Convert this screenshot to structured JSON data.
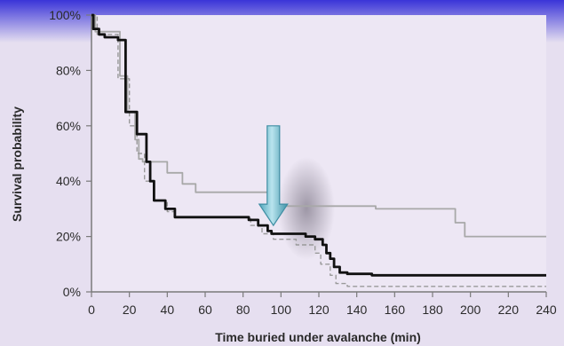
{
  "chart_data": {
    "type": "line",
    "title": "",
    "xlabel": "Time buried under avalanche (min)",
    "ylabel": "Survival probability",
    "xlim": [
      0,
      240
    ],
    "ylim": [
      0,
      100
    ],
    "x_ticks": [
      "0",
      "20",
      "40",
      "60",
      "80",
      "100",
      "120",
      "140",
      "160",
      "180",
      "200",
      "220",
      "240"
    ],
    "y_ticks": [
      "0%",
      "20%",
      "40%",
      "60%",
      "80%",
      "100%"
    ],
    "grid": false,
    "legend": "none",
    "colors": {
      "background": "#e6dff0",
      "plot_area": "#ede7f4",
      "axis": "#7a7a7a",
      "series_thick": "#111111",
      "series_light": "#a8a8a8",
      "series_dashed": "#9a9a9a",
      "arrow": "#7fc4d6",
      "arrow_stroke": "#3f8ea3",
      "top_bar": "#3a34d8"
    },
    "annotation": {
      "type": "down-arrow",
      "x": 96,
      "y_top": 60,
      "y_tip": 24
    },
    "series": [
      {
        "style": "thick-solid",
        "x": [
          0,
          1,
          1,
          4,
          4,
          7,
          7,
          14,
          14,
          18,
          18,
          21,
          21,
          24,
          24,
          26,
          26,
          29,
          29,
          31,
          31,
          33,
          33,
          39,
          39,
          44,
          44,
          83,
          83,
          88,
          88,
          93,
          93,
          95,
          95,
          113,
          113,
          118,
          118,
          122,
          122,
          124,
          124,
          126,
          126,
          128,
          128,
          131,
          131,
          135,
          135,
          148,
          148,
          240
        ],
        "y": [
          100,
          100,
          95,
          95,
          93,
          93,
          92,
          92,
          91,
          91,
          65,
          65,
          65,
          65,
          57,
          57,
          57,
          57,
          47,
          47,
          40,
          40,
          33,
          33,
          30,
          30,
          27,
          27,
          26,
          26,
          24,
          24,
          22,
          22,
          21,
          21,
          20,
          20,
          19,
          19,
          17,
          17,
          14,
          14,
          12,
          12,
          9,
          9,
          7,
          7,
          6.5,
          6.5,
          6,
          6
        ]
      },
      {
        "style": "light-solid",
        "x": [
          0,
          2,
          2,
          15,
          15,
          19,
          19,
          23,
          23,
          25,
          25,
          27,
          27,
          40,
          40,
          48,
          48,
          55,
          55,
          97,
          97,
          102,
          102,
          150,
          150,
          183,
          183,
          192,
          192,
          197,
          197,
          240
        ],
        "y": [
          100,
          100,
          94,
          94,
          78,
          78,
          65,
          65,
          55,
          55,
          48,
          48,
          47,
          47,
          43,
          43,
          39,
          39,
          36,
          36,
          31,
          31,
          31,
          31,
          30,
          30,
          30,
          30,
          25,
          25,
          20,
          20
        ]
      },
      {
        "style": "dashed",
        "x": [
          0,
          3,
          3,
          14,
          14,
          20,
          20,
          24,
          24,
          28,
          28,
          33,
          33,
          40,
          40,
          44,
          44,
          84,
          84,
          90,
          90,
          96,
          96,
          108,
          108,
          118,
          118,
          121,
          121,
          126,
          126,
          129,
          129,
          135,
          135,
          240
        ],
        "y": [
          100,
          100,
          93,
          93,
          77,
          77,
          60,
          60,
          50,
          50,
          40,
          40,
          33,
          33,
          29,
          29,
          27,
          27,
          24,
          24,
          21,
          21,
          19,
          19,
          17,
          17,
          14,
          14,
          10,
          10,
          6,
          6,
          3,
          3,
          2,
          2
        ]
      }
    ]
  }
}
